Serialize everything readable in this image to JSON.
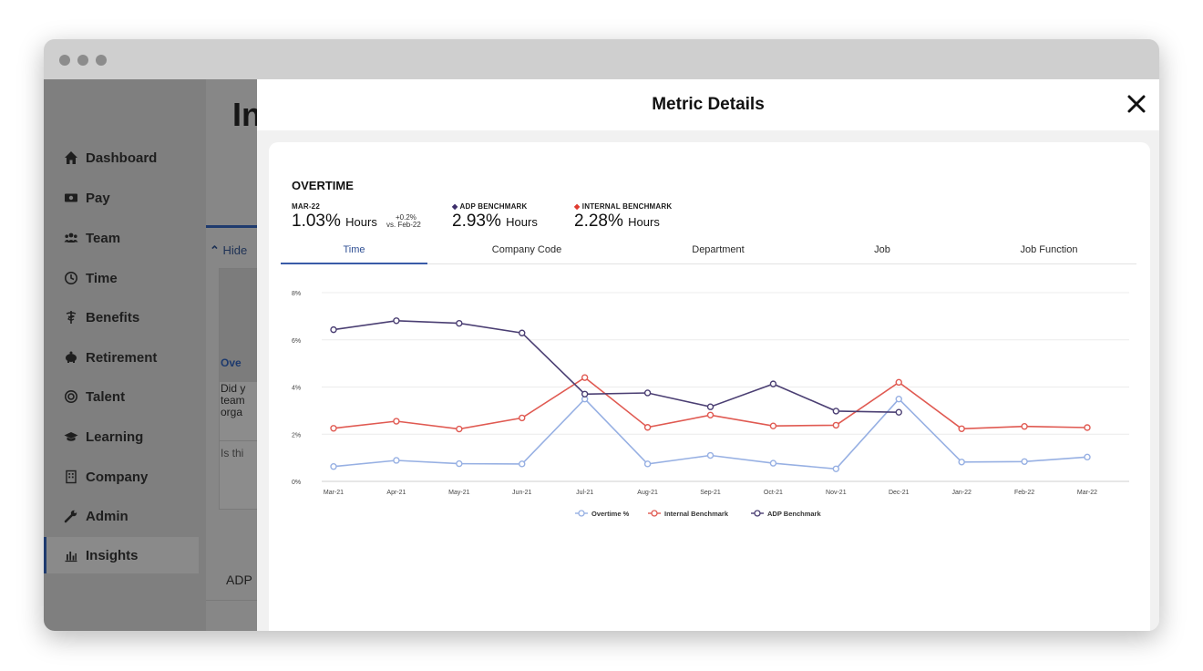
{
  "sidebar": {
    "items": [
      {
        "label": "Dashboard",
        "icon": "home-icon"
      },
      {
        "label": "Pay",
        "icon": "money-icon"
      },
      {
        "label": "Team",
        "icon": "team-icon"
      },
      {
        "label": "Time",
        "icon": "clock-icon"
      },
      {
        "label": "Benefits",
        "icon": "caduceus-icon"
      },
      {
        "label": "Retirement",
        "icon": "piggy-bank-icon"
      },
      {
        "label": "Talent",
        "icon": "target-icon"
      },
      {
        "label": "Learning",
        "icon": "graduation-cap-icon"
      },
      {
        "label": "Company",
        "icon": "building-icon"
      },
      {
        "label": "Admin",
        "icon": "wrench-icon"
      },
      {
        "label": "Insights",
        "icon": "bar-chart-icon"
      }
    ],
    "active": "Insights"
  },
  "background_page": {
    "title": "In",
    "hide_label": "Hide",
    "card_title": "Ove",
    "card_text": "Did y team orga",
    "card_question": "Is thi",
    "section_label": "ADP"
  },
  "modal": {
    "title": "Metric Details",
    "metric": {
      "title": "OVERTIME",
      "period_label": "MAR-22",
      "value": "1.03%",
      "unit": "Hours",
      "delta": "+0.2%",
      "delta_ref": "vs. Feb-22",
      "adp_label": "ADP BENCHMARK",
      "adp_value": "2.93%",
      "adp_unit": "Hours",
      "internal_label": "INTERNAL BENCHMARK",
      "internal_value": "2.28%",
      "internal_unit": "Hours"
    },
    "tabs": [
      "Time",
      "Company Code",
      "Department",
      "Job",
      "Job Function"
    ],
    "active_tab": "Time"
  },
  "colors": {
    "overtime": "#97b0e3",
    "internal": "#e05a52",
    "adp": "#4b3f73",
    "tab_active": "#3a5ba8"
  },
  "chart_data": {
    "type": "line",
    "categories": [
      "Mar-21",
      "Apr-21",
      "May-21",
      "Jun-21",
      "Jul-21",
      "Aug-21",
      "Sep-21",
      "Oct-21",
      "Nov-21",
      "Dec-21",
      "Jan-22",
      "Feb-22",
      "Mar-22"
    ],
    "ylim": [
      0,
      8
    ],
    "yticks": [
      "0%",
      "2%",
      "4%",
      "6%",
      "8%"
    ],
    "grid": true,
    "legend_position": "bottom",
    "series": [
      {
        "name": "Overtime %",
        "color": "#97b0e3",
        "values": [
          0.63,
          0.89,
          0.75,
          0.74,
          3.49,
          0.74,
          1.1,
          0.77,
          0.53,
          3.49,
          0.82,
          0.84,
          1.03
        ]
      },
      {
        "name": "Internal Benchmark",
        "color": "#e05a52",
        "values": [
          2.25,
          2.55,
          2.22,
          2.69,
          4.4,
          2.29,
          2.81,
          2.35,
          2.38,
          4.2,
          2.23,
          2.33,
          2.28
        ]
      },
      {
        "name": "ADP Benchmark",
        "color": "#4b3f73",
        "values": [
          6.43,
          6.81,
          6.7,
          6.29,
          3.7,
          3.75,
          3.16,
          4.13,
          2.98,
          2.93,
          null,
          null,
          null
        ]
      }
    ]
  }
}
